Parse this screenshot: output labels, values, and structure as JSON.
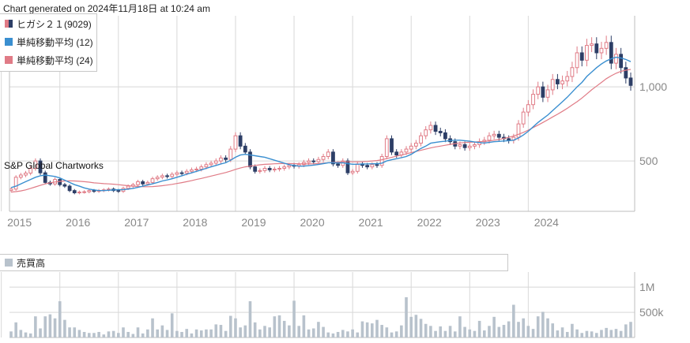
{
  "header": {
    "generated": "Chart generated on 2024年11月18日 at 10:24 am"
  },
  "watermark": "S&P Global Chartworks",
  "legend": {
    "price_label": "ヒガシ２１(9029)",
    "sma12_label": "単純移動平均 (12)",
    "sma24_label": "単純移動平均 (24)",
    "volume_label": "売買高"
  },
  "colors": {
    "up": "#e07b86",
    "down": "#2d3e66",
    "sma12": "#3a8fd0",
    "sma24": "#e07b86",
    "volume": "#b8c2cc",
    "grid": "#d8d8d8",
    "axis_text": "#888888"
  },
  "chart_data": [
    {
      "type": "candlestick",
      "frequency": "monthly",
      "x_ticks": [
        "2015",
        "2016",
        "2017",
        "2018",
        "2019",
        "2020",
        "2021",
        "2022",
        "2023",
        "2024"
      ],
      "y_ticks": [
        "500",
        "1,000"
      ],
      "ylim": [
        160,
        1480
      ],
      "series": [
        {
          "name": "ヒガシ２１(9029)",
          "close": [
            310,
            390,
            405,
            418,
            450,
            500,
            420,
            355,
            345,
            375,
            340,
            330,
            300,
            285,
            290,
            292,
            300,
            295,
            300,
            305,
            310,
            300,
            295,
            315,
            330,
            340,
            360,
            345,
            355,
            380,
            390,
            400,
            395,
            410,
            420,
            418,
            430,
            440,
            445,
            460,
            475,
            485,
            500,
            520,
            510,
            580,
            670,
            600,
            560,
            460,
            430,
            435,
            450,
            440,
            445,
            450,
            460,
            470,
            465,
            475,
            490,
            500,
            495,
            510,
            530,
            560,
            480,
            470,
            500,
            420,
            430,
            480,
            470,
            460,
            475,
            470,
            530,
            650,
            560,
            540,
            560,
            580,
            600,
            620,
            670,
            710,
            740,
            700,
            690,
            650,
            630,
            600,
            610,
            590,
            600,
            610,
            630,
            640,
            670,
            680,
            660,
            650,
            640,
            660,
            750,
            830,
            880,
            950,
            1000,
            930,
            980,
            1050,
            1020,
            1040,
            1070,
            1130,
            1230,
            1180,
            1280,
            1290,
            1230,
            1260,
            1300,
            1160,
            1220,
            1130,
            1060,
            1010
          ]
        },
        {
          "name": "単純移動平均 (12)",
          "values": [
            320,
            330,
            345,
            360,
            375,
            390,
            400,
            405,
            400,
            395,
            385,
            370,
            355,
            340,
            330,
            318,
            310,
            305,
            300,
            300,
            302,
            305,
            306,
            306,
            310,
            315,
            322,
            330,
            338,
            346,
            355,
            365,
            372,
            380,
            390,
            400,
            410,
            420,
            430,
            440,
            450,
            460,
            470,
            480,
            488,
            505,
            525,
            540,
            545,
            540,
            535,
            530,
            525,
            515,
            505,
            495,
            485,
            475,
            470,
            465,
            465,
            468,
            472,
            476,
            482,
            488,
            488,
            487,
            488,
            482,
            478,
            478,
            480,
            480,
            481,
            481,
            485,
            500,
            508,
            515,
            522,
            530,
            545,
            565,
            585,
            600,
            620,
            625,
            630,
            633,
            638,
            640,
            640,
            637,
            633,
            628,
            624,
            621,
            625,
            630,
            632,
            635,
            637,
            640,
            655,
            675,
            700,
            730,
            760,
            785,
            810,
            840,
            870,
            900,
            930,
            965,
            1000,
            1030,
            1070,
            1100,
            1130,
            1155,
            1175,
            1190,
            1200,
            1195,
            1185,
            1170
          ]
        },
        {
          "name": "単純移動平均 (24)",
          "values": [
            290,
            293,
            298,
            305,
            315,
            325,
            335,
            345,
            352,
            358,
            362,
            365,
            366,
            365,
            363,
            360,
            357,
            352,
            350,
            347,
            345,
            343,
            340,
            336,
            333,
            330,
            328,
            326,
            326,
            327,
            330,
            333,
            337,
            342,
            348,
            354,
            360,
            367,
            375,
            382,
            390,
            398,
            406,
            414,
            422,
            432,
            443,
            452,
            460,
            465,
            470,
            474,
            477,
            479,
            481,
            482,
            483,
            483,
            482,
            481,
            480,
            480,
            481,
            482,
            485,
            488,
            490,
            492,
            494,
            494,
            494,
            494,
            495,
            497,
            500,
            503,
            508,
            516,
            524,
            532,
            540,
            548,
            556,
            564,
            572,
            580,
            588,
            595,
            600,
            606,
            612,
            617,
            622,
            624,
            626,
            628,
            630,
            632,
            635,
            640,
            645,
            652,
            660,
            668,
            680,
            693,
            708,
            725,
            742,
            760,
            778,
            797,
            815,
            835,
            855,
            878,
            900,
            925,
            952,
            980,
            1005,
            1030,
            1055,
            1075,
            1092,
            1105,
            1113,
            1118
          ]
        }
      ]
    },
    {
      "type": "bar",
      "y_ticks": [
        "500k",
        "1M"
      ],
      "ylim": [
        0,
        1300000
      ],
      "series": [
        {
          "name": "売買高",
          "values": [
            120000,
            300000,
            150000,
            100000,
            80000,
            420000,
            180000,
            420000,
            460000,
            380000,
            720000,
            350000,
            200000,
            200000,
            150000,
            110000,
            90000,
            90000,
            110000,
            60000,
            120000,
            130000,
            90000,
            200000,
            110000,
            70000,
            200000,
            80000,
            160000,
            380000,
            160000,
            240000,
            150000,
            480000,
            130000,
            110000,
            170000,
            80000,
            160000,
            140000,
            160000,
            160000,
            260000,
            250000,
            130000,
            430000,
            380000,
            200000,
            240000,
            720000,
            300000,
            160000,
            230000,
            200000,
            420000,
            440000,
            330000,
            240000,
            730000,
            230000,
            440000,
            160000,
            180000,
            310000,
            210000,
            100000,
            80000,
            110000,
            150000,
            120000,
            160000,
            100000,
            320000,
            300000,
            280000,
            350000,
            250000,
            200000,
            100000,
            120000,
            240000,
            800000,
            410000,
            450000,
            370000,
            270000,
            230000,
            130000,
            220000,
            130000,
            230000,
            120000,
            420000,
            210000,
            160000,
            130000,
            330000,
            140000,
            230000,
            410000,
            210000,
            250000,
            320000,
            650000,
            310000,
            380000,
            230000,
            170000,
            420000,
            510000,
            380000,
            280000,
            140000,
            200000,
            110000,
            270000,
            160000,
            90000,
            130000,
            120000,
            90000,
            150000,
            190000,
            150000,
            170000,
            130000,
            260000,
            310000
          ]
        }
      ]
    }
  ]
}
